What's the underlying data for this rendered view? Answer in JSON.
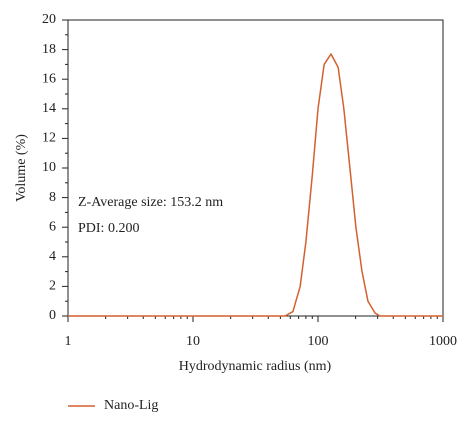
{
  "chart_data": {
    "type": "line",
    "x_label": "Hydrodynamic radius (nm)",
    "y_label": "Volume (%)",
    "annotations": [
      "Z-Average size: 153.2 nm",
      "PDI: 0.200"
    ],
    "x": [
      1,
      54.5,
      63,
      72,
      80,
      90,
      100,
      112,
      127,
      145,
      161,
      180,
      201,
      225,
      251,
      286,
      313,
      1000
    ],
    "series": [
      {
        "name": "Nano-Lig",
        "color": "#d4602f",
        "values": [
          0,
          0,
          0.3,
          2,
          5,
          9.5,
          14,
          17,
          17.7,
          16.8,
          14,
          10,
          6,
          3,
          1,
          0.2,
          0,
          0
        ]
      }
    ],
    "xlim": [
      1,
      1000
    ],
    "xticks": [
      1,
      10,
      100,
      1000
    ],
    "x_log": true,
    "ylim": [
      0,
      20
    ],
    "yticks": [
      0,
      2,
      4,
      6,
      8,
      10,
      12,
      14,
      16,
      18,
      20
    ],
    "grid": false,
    "legend": "bottom"
  }
}
